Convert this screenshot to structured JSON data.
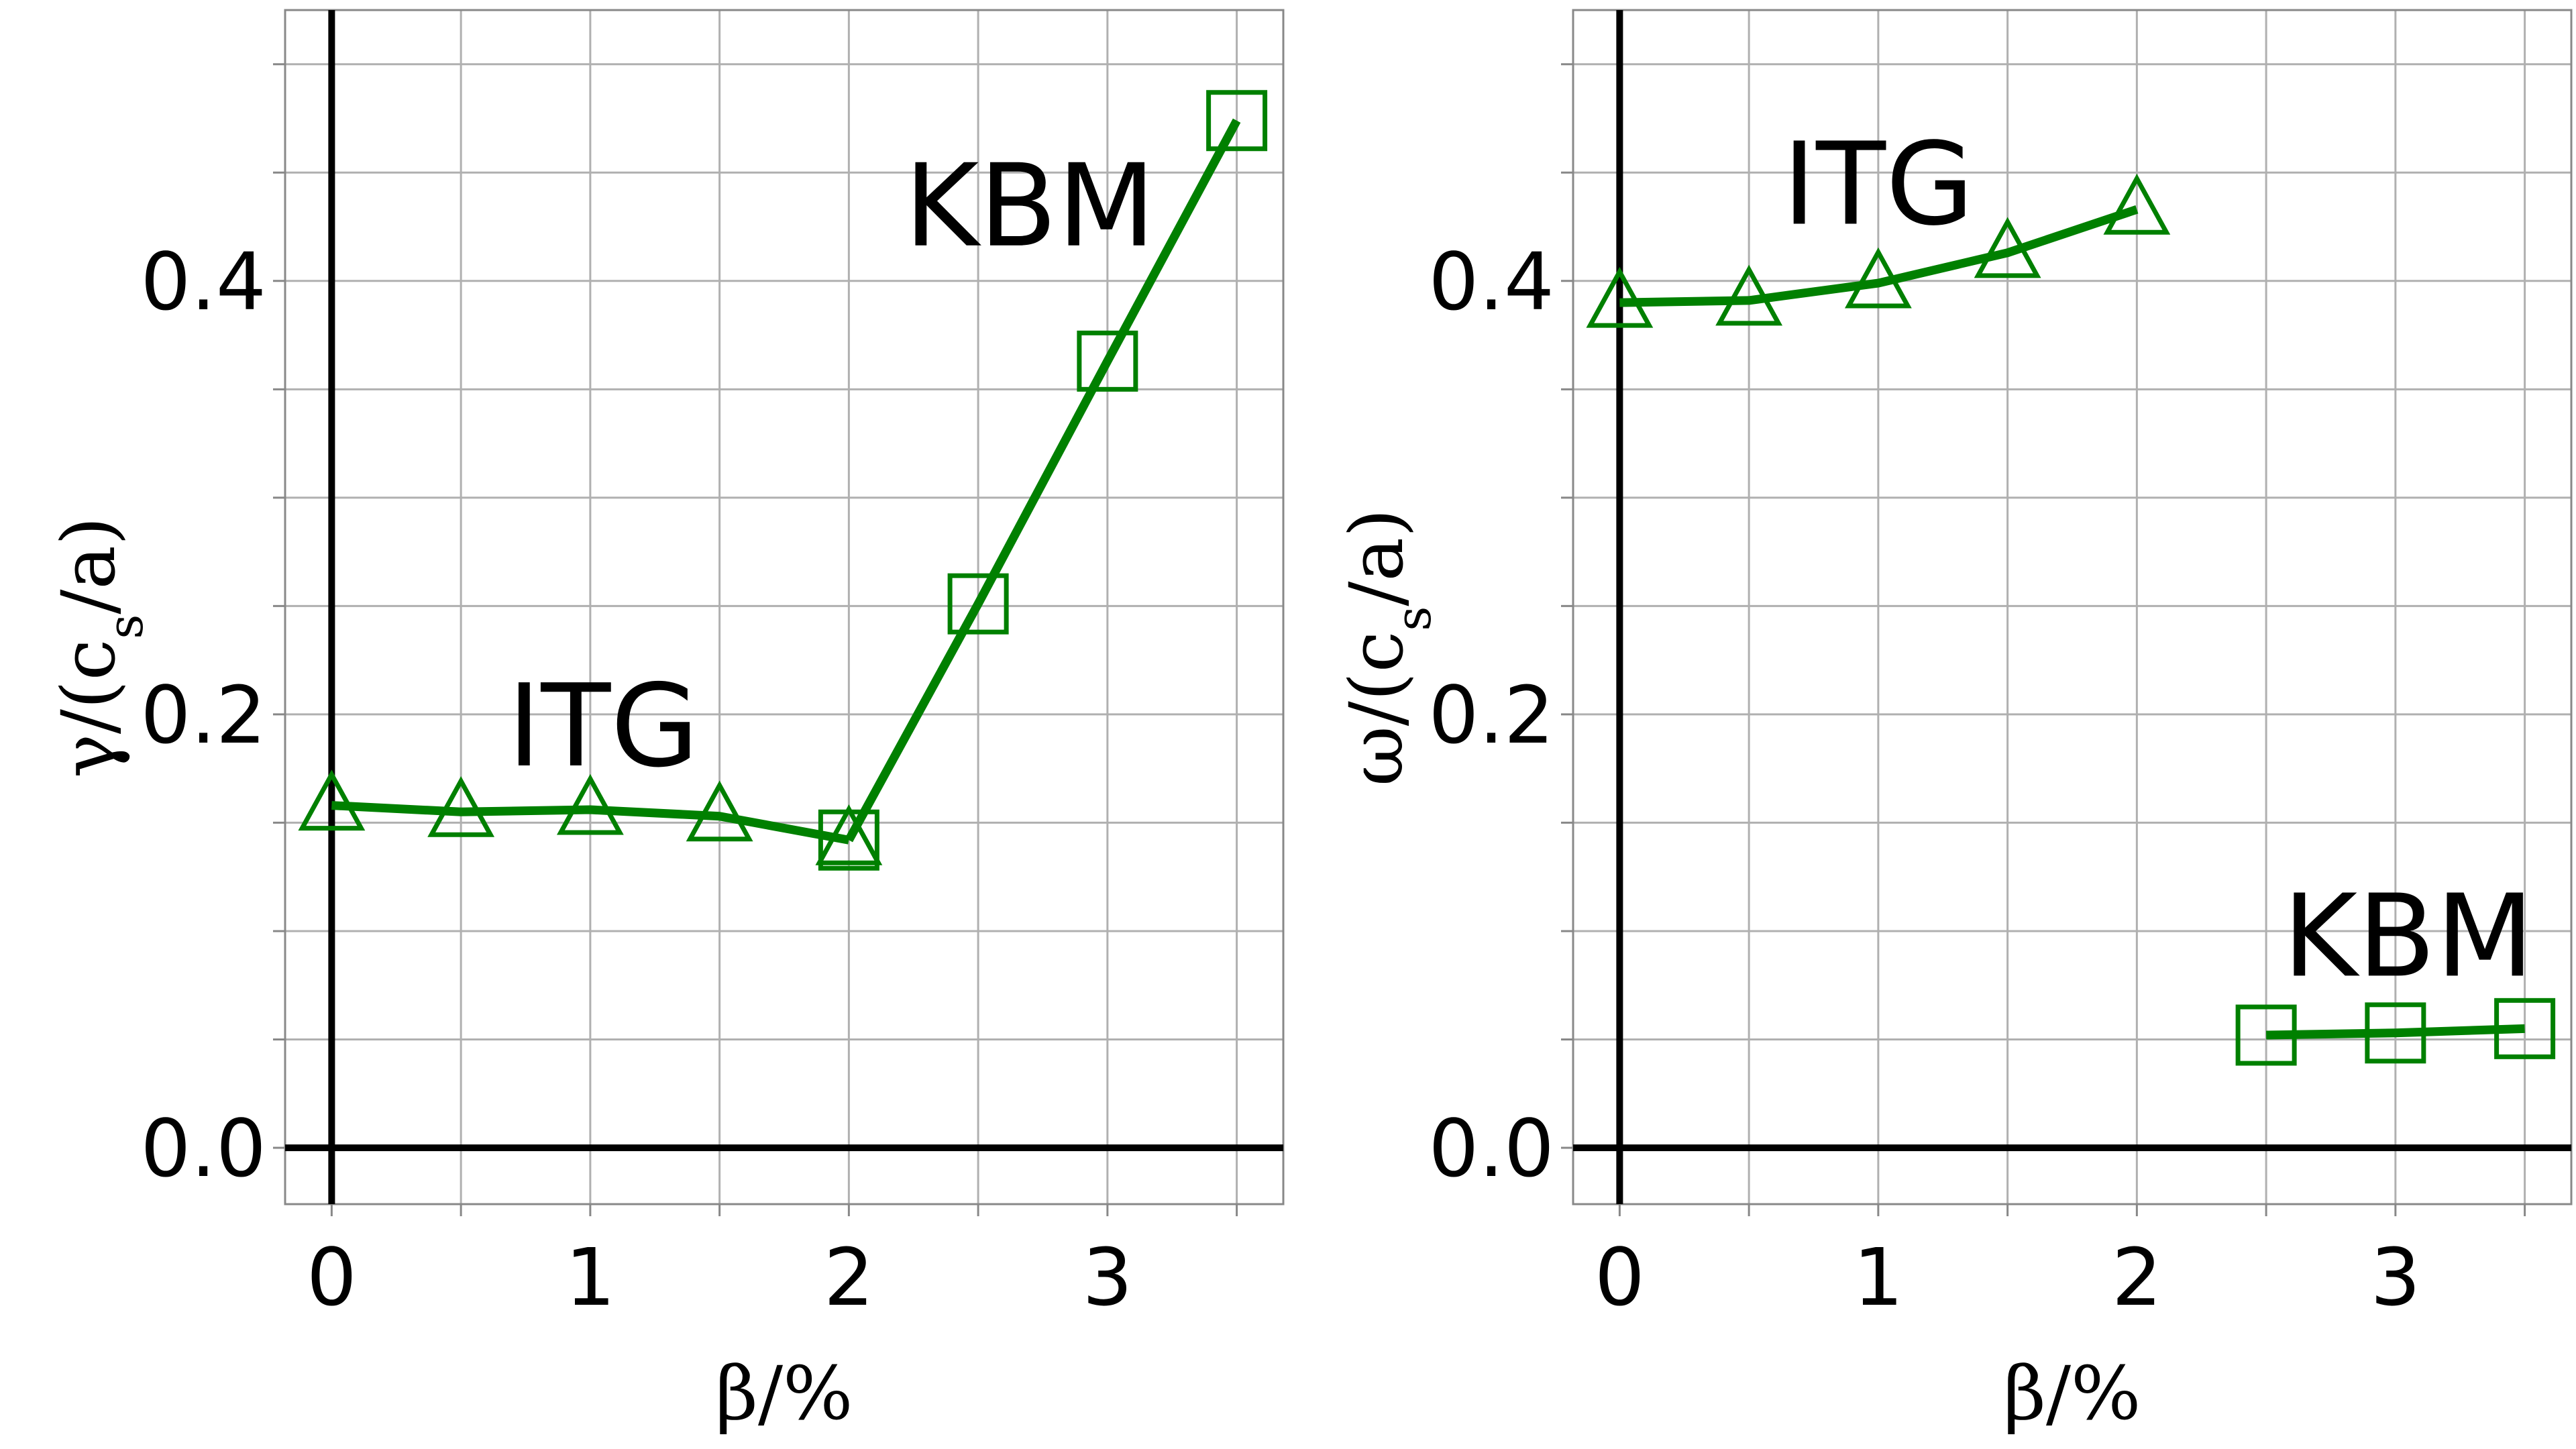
{
  "chart_data": [
    {
      "type": "line",
      "xlabel": "β/%",
      "ylabel": "γ/(c_s/a)",
      "xlim": [
        -0.18,
        3.68
      ],
      "ylim": [
        -0.026,
        0.525
      ],
      "xticks": [
        0,
        0.5,
        1,
        1.5,
        2,
        2.5,
        3,
        3.5
      ],
      "xtick_labels": [
        "0",
        "",
        "1",
        "",
        "2",
        "",
        "3",
        ""
      ],
      "yticks": [
        0.0,
        0.05,
        0.1,
        0.15,
        0.2,
        0.25,
        0.3,
        0.35,
        0.4,
        0.45,
        0.5
      ],
      "ytick_labels": [
        "0.0",
        "",
        "",
        "",
        "0.2",
        "",
        "",
        "",
        "0.4",
        "",
        ""
      ],
      "grid": true,
      "color": "#008000",
      "series": [
        {
          "name": "ITG",
          "marker": "triangle",
          "x": [
            0,
            0.5,
            1,
            1.5,
            2
          ],
          "y": [
            0.158,
            0.155,
            0.156,
            0.153,
            0.142
          ]
        },
        {
          "name": "KBM",
          "marker": "square",
          "x": [
            2,
            2.5,
            3,
            3.5
          ],
          "y": [
            0.142,
            0.251,
            0.363,
            0.474
          ]
        }
      ],
      "annotations": [
        {
          "text": "ITG",
          "x": 1.05,
          "y": 0.195
        },
        {
          "text": "KBM",
          "x": 2.7,
          "y": 0.435
        }
      ]
    },
    {
      "type": "line",
      "xlabel": "β/%",
      "ylabel": "ω/(c_s/a)",
      "xlim": [
        -0.18,
        3.68
      ],
      "ylim": [
        -0.026,
        0.525
      ],
      "xticks": [
        0,
        0.5,
        1,
        1.5,
        2,
        2.5,
        3,
        3.5
      ],
      "xtick_labels": [
        "0",
        "",
        "1",
        "",
        "2",
        "",
        "3",
        ""
      ],
      "yticks": [
        0.0,
        0.05,
        0.1,
        0.15,
        0.2,
        0.25,
        0.3,
        0.35,
        0.4,
        0.45,
        0.5
      ],
      "ytick_labels": [
        "0.0",
        "",
        "",
        "",
        "0.2",
        "",
        "",
        "",
        "0.4",
        "",
        ""
      ],
      "grid": true,
      "color": "#008000",
      "series": [
        {
          "name": "ITG",
          "marker": "triangle",
          "x": [
            0,
            0.5,
            1,
            1.5,
            2
          ],
          "y": [
            0.39,
            0.391,
            0.399,
            0.413,
            0.433
          ]
        },
        {
          "name": "KBM",
          "marker": "square",
          "x": [
            2.5,
            3,
            3.5
          ],
          "y": [
            0.052,
            0.053,
            0.055
          ]
        }
      ],
      "annotations": [
        {
          "text": "ITG",
          "x": 1.0,
          "y": 0.445
        },
        {
          "text": "KBM",
          "x": 3.05,
          "y": 0.098
        }
      ]
    }
  ]
}
